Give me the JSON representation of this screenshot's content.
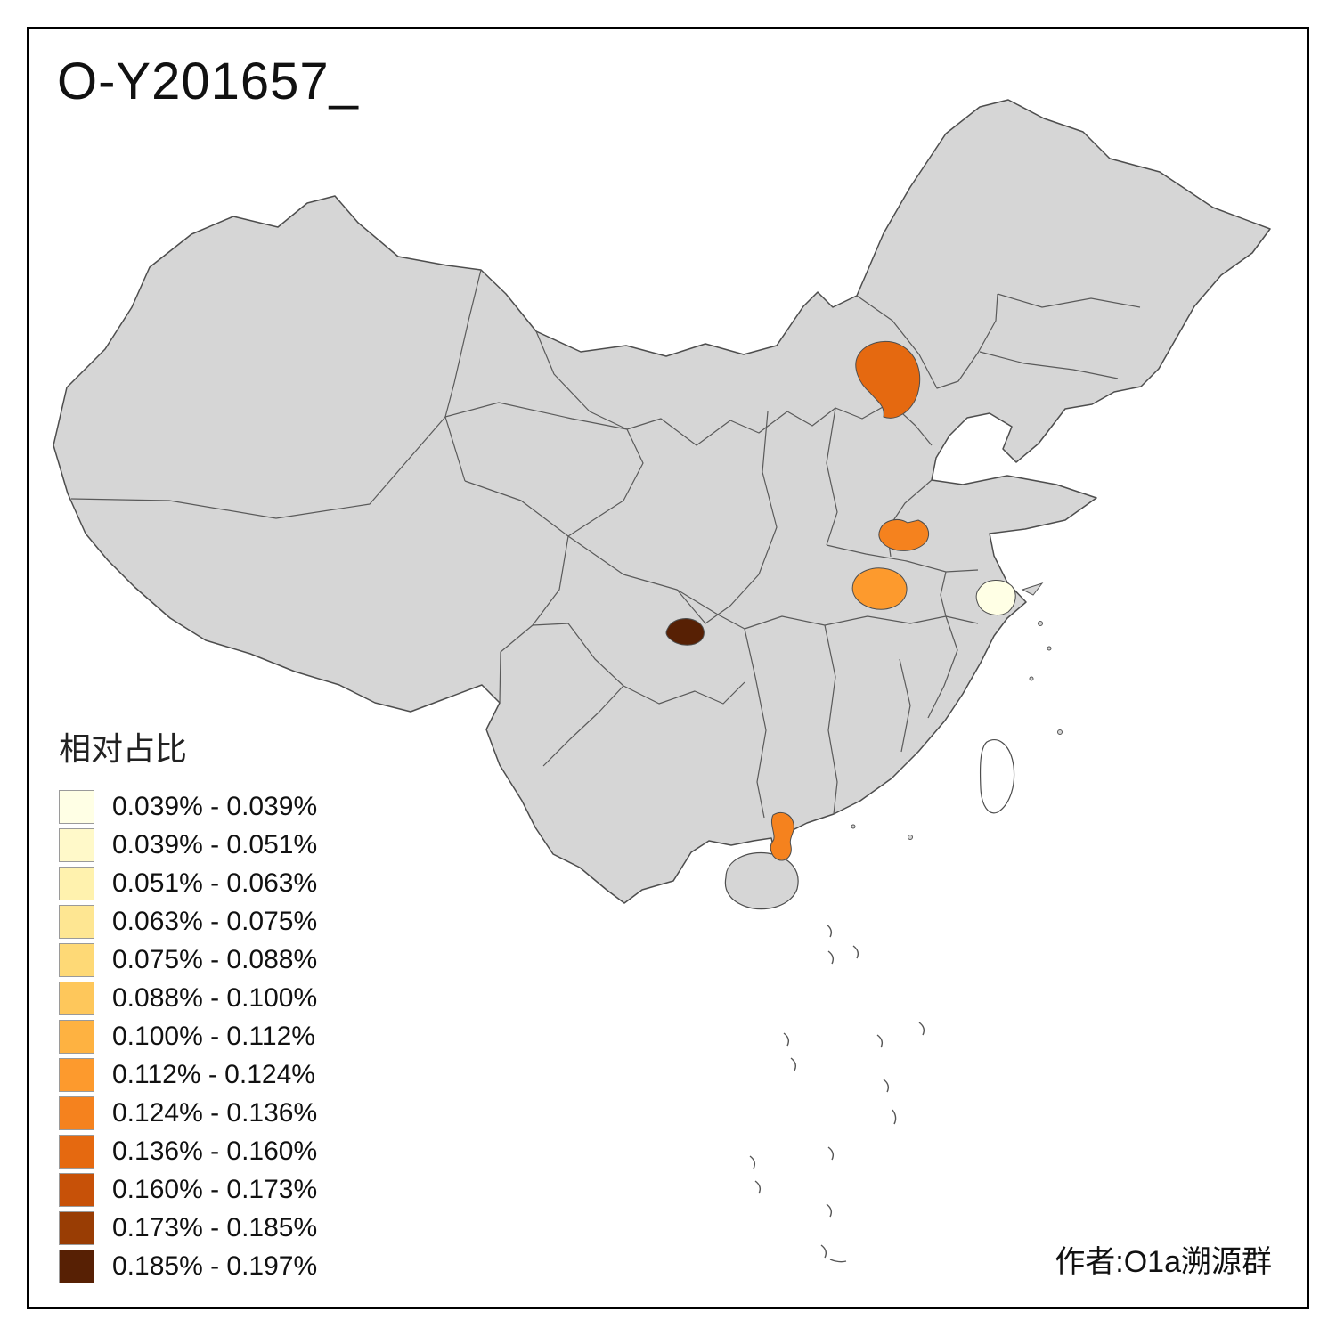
{
  "page": {
    "background": "#ffffff",
    "frame_color": "#000000"
  },
  "title": "O-Y201657_",
  "attribution": "作者:O1a溯源群",
  "legend": {
    "title": "相对占比",
    "items": [
      {
        "label": "0.039% - 0.039%",
        "color": "#FFFFE5"
      },
      {
        "label": "0.039% - 0.051%",
        "color": "#FFF9C9"
      },
      {
        "label": "0.051% - 0.063%",
        "color": "#FFF2AE"
      },
      {
        "label": "0.063% - 0.075%",
        "color": "#FEE692"
      },
      {
        "label": "0.075% - 0.088%",
        "color": "#FED976"
      },
      {
        "label": "0.088% - 0.100%",
        "color": "#FEC75B"
      },
      {
        "label": "0.100% - 0.112%",
        "color": "#FEB241"
      },
      {
        "label": "0.112% - 0.124%",
        "color": "#FD9A2D"
      },
      {
        "label": "0.124% - 0.136%",
        "color": "#F5821E"
      },
      {
        "label": "0.136% - 0.160%",
        "color": "#E56910"
      },
      {
        "label": "0.160% - 0.173%",
        "color": "#C75108"
      },
      {
        "label": "0.173% - 0.185%",
        "color": "#993D04"
      },
      {
        "label": "0.185% - 0.197%",
        "color": "#572004"
      }
    ]
  },
  "map": {
    "base_fill": "#d6d6d6",
    "border_color": "#4d4d4d",
    "regions": {
      "region-north": {
        "color": "#E56910",
        "bin": "0.136% - 0.160%"
      },
      "region-central-upper": {
        "color": "#F5821E",
        "bin": "0.124% - 0.136%"
      },
      "region-central-lower": {
        "color": "#FD9A2D",
        "bin": "0.112% - 0.124%"
      },
      "region-southwest-dark": {
        "color": "#572004",
        "bin": "0.185% - 0.197%"
      },
      "region-east-cream": {
        "color": "#FFFFE5",
        "bin": "0.039% - 0.039%"
      },
      "region-south-peninsula": {
        "color": "#F5821E",
        "bin": "0.124% - 0.136%"
      }
    }
  }
}
